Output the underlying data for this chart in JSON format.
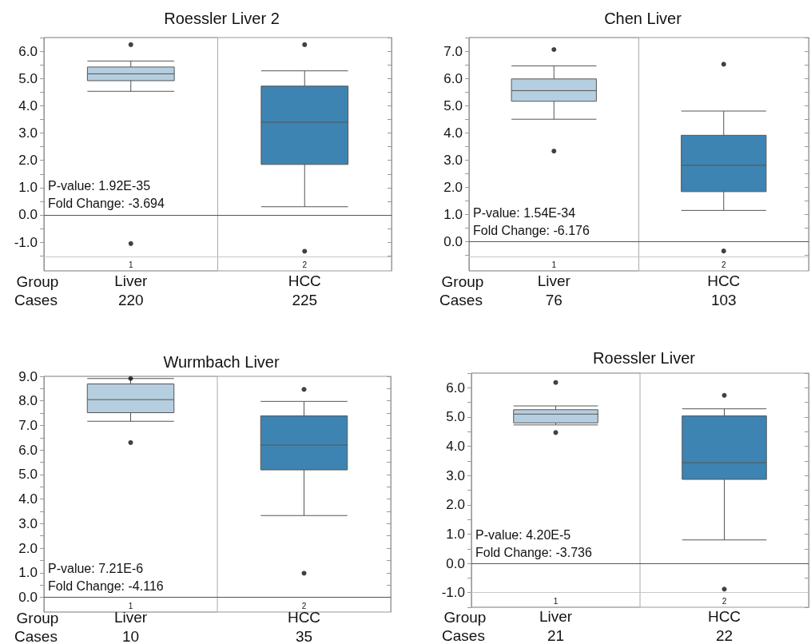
{
  "chart_data": [
    {
      "type": "box",
      "title": "Roessler Liver 2",
      "categories": [
        "Liver",
        "HCC"
      ],
      "colors": [
        "#b5cfe0",
        "#3d84b2"
      ],
      "boxes": [
        {
          "low": 4.53,
          "q1": 4.92,
          "median": 5.17,
          "q3": 5.42,
          "high": 5.64,
          "outliers": [
            6.24,
            -1.05
          ]
        },
        {
          "low": 0.3,
          "q1": 1.85,
          "median": 3.4,
          "q3": 4.72,
          "high": 5.28,
          "outliers": [
            6.24,
            -1.33
          ]
        }
      ],
      "ylim": [
        -2.05,
        6.5
      ],
      "yticks": [
        {
          "value": -1.5,
          "label": null
        },
        {
          "value": -1,
          "label": "-1.0"
        },
        {
          "value": -0.5,
          "label": null
        },
        {
          "value": 0,
          "label": "0.0"
        },
        {
          "value": 0.5,
          "label": null
        },
        {
          "value": 1,
          "label": "1.0"
        },
        {
          "value": 1.5,
          "label": null
        },
        {
          "value": 2,
          "label": "2.0"
        },
        {
          "value": 2.5,
          "label": null
        },
        {
          "value": 3,
          "label": "3.0"
        },
        {
          "value": 3.5,
          "label": null
        },
        {
          "value": 4,
          "label": "4.0"
        },
        {
          "value": 4.5,
          "label": null
        },
        {
          "value": 5,
          "label": "5.0"
        },
        {
          "value": 5.5,
          "label": null
        },
        {
          "value": 6,
          "label": "6.0"
        },
        {
          "value": 6.5,
          "label": null
        }
      ],
      "ref_lines": [
        {
          "axis": "y",
          "value": 0,
          "color": "#555555"
        },
        {
          "axis": "y",
          "value": -1.52,
          "color": "#c8c8c8"
        }
      ],
      "annotations": [
        "P-value: 1.92E-35",
        "Fold Change: -3.694",
        "Group",
        "Cases",
        "220",
        "225",
        "1",
        "2"
      ]
    },
    {
      "type": "box",
      "title": "Chen Liver",
      "categories": [
        "Liver",
        "HCC"
      ],
      "colors": [
        "#b5cfe0",
        "#3d84b2"
      ],
      "boxes": [
        {
          "low": 4.5,
          "q1": 5.16,
          "median": 5.55,
          "q3": 5.98,
          "high": 6.46,
          "outliers": [
            7.06,
            3.33
          ]
        },
        {
          "low": 1.15,
          "q1": 1.84,
          "median": 2.81,
          "q3": 3.91,
          "high": 4.8,
          "outliers": [
            6.52,
            -0.34
          ]
        }
      ],
      "ylim": [
        -1.07,
        7.5
      ],
      "yticks": [
        {
          "value": -0.5,
          "label": null
        },
        {
          "value": 0,
          "label": "0.0"
        },
        {
          "value": 0.5,
          "label": null
        },
        {
          "value": 1,
          "label": "1.0"
        },
        {
          "value": 1.5,
          "label": null
        },
        {
          "value": 2,
          "label": "2.0"
        },
        {
          "value": 2.5,
          "label": null
        },
        {
          "value": 3,
          "label": "3.0"
        },
        {
          "value": 3.5,
          "label": null
        },
        {
          "value": 4,
          "label": "4.0"
        },
        {
          "value": 4.5,
          "label": null
        },
        {
          "value": 5,
          "label": "5.0"
        },
        {
          "value": 5.5,
          "label": null
        },
        {
          "value": 6,
          "label": "6.0"
        },
        {
          "value": 6.5,
          "label": null
        },
        {
          "value": 7,
          "label": "7.0"
        },
        {
          "value": 7.5,
          "label": null
        }
      ],
      "ref_lines": [
        {
          "axis": "y",
          "value": 0,
          "color": "#555555"
        },
        {
          "axis": "y",
          "value": -0.54,
          "color": "#c8c8c8"
        }
      ],
      "annotations": [
        "P-value: 1.54E-34",
        "Fold Change: -6.176",
        "Group",
        "Cases",
        "76",
        "103",
        "1",
        "2"
      ]
    },
    {
      "type": "box",
      "title": "Wurmbach Liver",
      "categories": [
        "Liver",
        "HCC"
      ],
      "colors": [
        "#b5cfe0",
        "#3d84b2"
      ],
      "boxes": [
        {
          "low": 7.17,
          "q1": 7.52,
          "median": 8.05,
          "q3": 8.69,
          "high": 8.91,
          "outliers": [
            8.91,
            6.3
          ]
        },
        {
          "low": 3.33,
          "q1": 5.19,
          "median": 6.2,
          "q3": 7.39,
          "high": 7.98,
          "outliers": [
            8.47,
            0.98
          ]
        }
      ],
      "ylim": [
        -0.6,
        9
      ],
      "yticks": [
        {
          "value": 0,
          "label": "0.0"
        },
        {
          "value": 0.5,
          "label": null
        },
        {
          "value": 1,
          "label": "1.0"
        },
        {
          "value": 1.5,
          "label": null
        },
        {
          "value": 2,
          "label": "2.0"
        },
        {
          "value": 2.5,
          "label": null
        },
        {
          "value": 3,
          "label": "3.0"
        },
        {
          "value": 3.5,
          "label": null
        },
        {
          "value": 4,
          "label": "4.0"
        },
        {
          "value": 4.5,
          "label": null
        },
        {
          "value": 5,
          "label": "5.0"
        },
        {
          "value": 5.5,
          "label": null
        },
        {
          "value": 6,
          "label": "6.0"
        },
        {
          "value": 6.5,
          "label": null
        },
        {
          "value": 7,
          "label": "7.0"
        },
        {
          "value": 7.5,
          "label": null
        },
        {
          "value": 8,
          "label": "8.0"
        },
        {
          "value": 8.5,
          "label": null
        },
        {
          "value": 9,
          "label": "9.0"
        }
      ],
      "ref_lines": [
        {
          "axis": "y",
          "value": 0,
          "color": "#555555"
        }
      ],
      "annotations": [
        "P-value: 7.21E-6",
        "Fold Change: -4.116",
        "Group",
        "Cases",
        "10",
        "35",
        "1",
        "2"
      ]
    },
    {
      "type": "box",
      "title": "Roessler Liver",
      "categories": [
        "Liver",
        "HCC"
      ],
      "colors": [
        "#b5cfe0",
        "#3d84b2"
      ],
      "boxes": [
        {
          "low": 4.73,
          "q1": 4.8,
          "median": 5.1,
          "q3": 5.25,
          "high": 5.38,
          "outliers": [
            6.18,
            4.47
          ]
        },
        {
          "low": 0.8,
          "q1": 2.87,
          "median": 3.44,
          "q3": 5.04,
          "high": 5.28,
          "outliers": [
            5.74,
            -0.88
          ]
        }
      ],
      "ylim": [
        -1.5,
        6.5
      ],
      "yticks": [
        {
          "value": -1.5,
          "label": null
        },
        {
          "value": -1,
          "label": "-1.0"
        },
        {
          "value": -0.5,
          "label": null
        },
        {
          "value": 0,
          "label": "0.0"
        },
        {
          "value": 0.5,
          "label": null
        },
        {
          "value": 1,
          "label": "1.0"
        },
        {
          "value": 1.5,
          "label": null
        },
        {
          "value": 2,
          "label": "2.0"
        },
        {
          "value": 2.5,
          "label": null
        },
        {
          "value": 3,
          "label": "3.0"
        },
        {
          "value": 3.5,
          "label": null
        },
        {
          "value": 4,
          "label": "4.0"
        },
        {
          "value": 4.5,
          "label": null
        },
        {
          "value": 5,
          "label": "5.0"
        },
        {
          "value": 5.5,
          "label": null
        },
        {
          "value": 6,
          "label": "6.0"
        },
        {
          "value": 6.5,
          "label": null
        }
      ],
      "ref_lines": [
        {
          "axis": "y",
          "value": 0,
          "color": "#555555"
        },
        {
          "axis": "y",
          "value": -1,
          "color": "#c8c8c8"
        }
      ],
      "annotations": [
        "P-value: 4.20E-5",
        "Fold Change: -3.736",
        "Group",
        "Cases",
        "21",
        "22",
        "1",
        "2"
      ]
    }
  ]
}
